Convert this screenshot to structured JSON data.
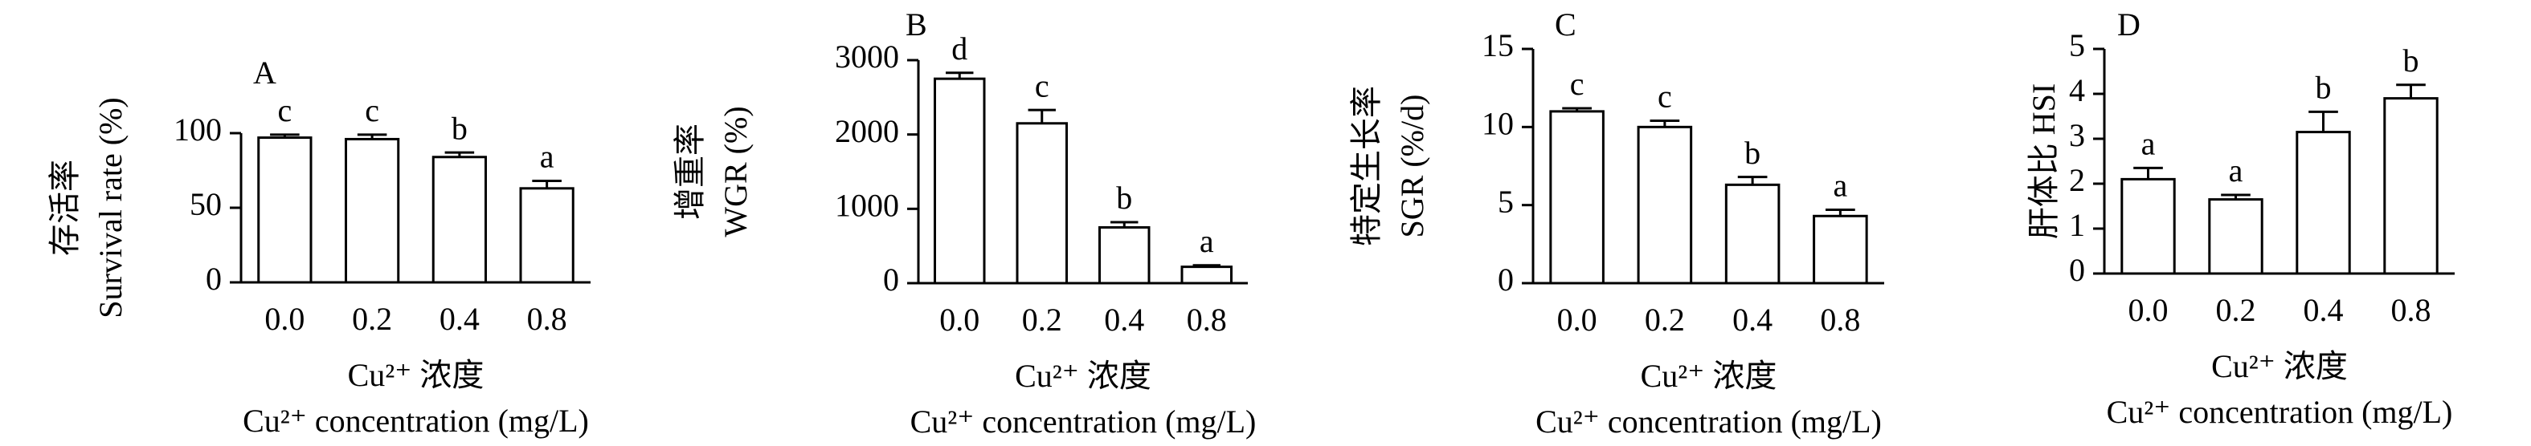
{
  "chart_data": [
    {
      "type": "bar",
      "panel": "A",
      "ylabel": [
        "存活率",
        "Survival rate (%)"
      ],
      "xlabel": [
        "Cu²⁺ 浓度",
        "Cu²⁺ concentration (mg/L)"
      ],
      "categories": [
        "0.0",
        "0.2",
        "0.4",
        "0.8"
      ],
      "values": [
        97,
        96,
        84,
        63
      ],
      "errors": [
        2,
        3,
        3,
        5
      ],
      "annotations": [
        "c",
        "c",
        "b",
        "a"
      ],
      "ylim": [
        0,
        100
      ],
      "yticks": [
        0,
        50,
        100
      ],
      "color": "#ffffff"
    },
    {
      "type": "bar",
      "panel": "B",
      "ylabel": [
        "增重率",
        "WGR (%)"
      ],
      "xlabel": [
        "Cu²⁺ 浓度",
        "Cu²⁺ concentration (mg/L)"
      ],
      "categories": [
        "0.0",
        "0.2",
        "0.4",
        "0.8"
      ],
      "values": [
        2750,
        2150,
        750,
        220
      ],
      "errors": [
        80,
        180,
        70,
        20
      ],
      "annotations": [
        "d",
        "c",
        "b",
        "a"
      ],
      "ylim": [
        0,
        3000
      ],
      "yticks": [
        0,
        1000,
        2000,
        3000
      ],
      "color": "#ffffff"
    },
    {
      "type": "bar",
      "panel": "C",
      "ylabel": [
        "特定生长率",
        "SGR (%/d)"
      ],
      "xlabel": [
        "Cu²⁺ 浓度",
        "Cu²⁺ concentration (mg/L)"
      ],
      "categories": [
        "0.0",
        "0.2",
        "0.4",
        "0.8"
      ],
      "values": [
        11.0,
        10.0,
        6.3,
        4.3
      ],
      "errors": [
        0.2,
        0.4,
        0.5,
        0.4
      ],
      "annotations": [
        "c",
        "c",
        "b",
        "a"
      ],
      "ylim": [
        0,
        15
      ],
      "yticks": [
        0,
        5,
        10,
        15
      ],
      "color": "#ffffff"
    },
    {
      "type": "bar",
      "panel": "D",
      "ylabel": [
        "肝体比 HSI"
      ],
      "xlabel": [
        "Cu²⁺ 浓度",
        "Cu²⁺ concentration (mg/L)"
      ],
      "categories": [
        "0.0",
        "0.2",
        "0.4",
        "0.8"
      ],
      "values": [
        2.1,
        1.65,
        3.15,
        3.9
      ],
      "errors": [
        0.25,
        0.1,
        0.45,
        0.3
      ],
      "annotations": [
        "a",
        "a",
        "b",
        "b"
      ],
      "ylim": [
        0,
        5
      ],
      "yticks": [
        0,
        1,
        2,
        3,
        4,
        5
      ],
      "color": "#ffffff"
    }
  ]
}
